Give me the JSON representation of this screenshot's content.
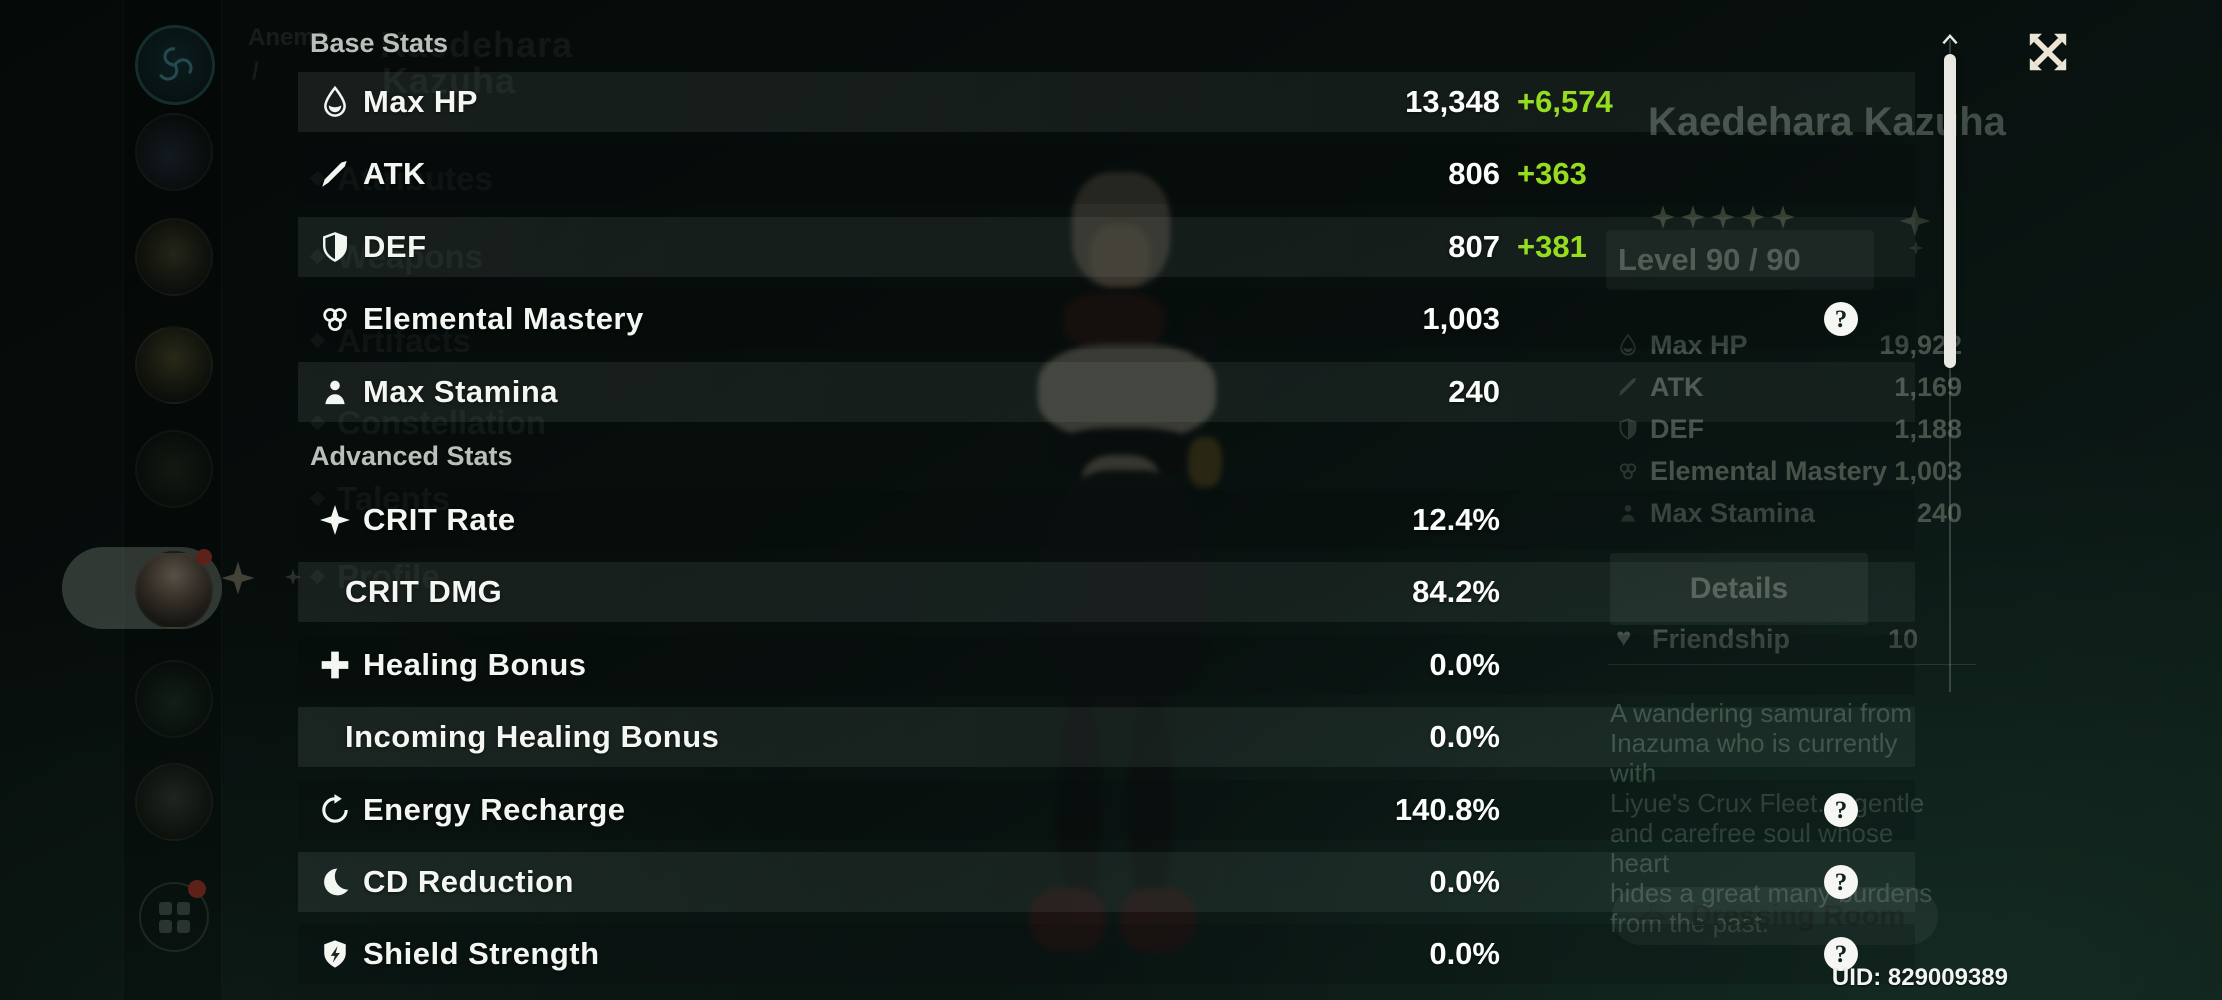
{
  "colors": {
    "accent_green": "#96dd1f",
    "cream": "#ece5d6",
    "scrollbar": "#e9e7e2",
    "panel_row_light": "rgba(206,232,221,0.08)"
  },
  "overlay": {
    "base_section_title": "Base Stats",
    "advanced_section_title": "Advanced Stats",
    "base_rows": [
      {
        "icon": "hp-drop-icon",
        "label": "Max HP",
        "value": "13,348",
        "bonus": "+6,574",
        "help": false
      },
      {
        "icon": "atk-sword-icon",
        "label": "ATK",
        "value": "806",
        "bonus": "+363",
        "help": false
      },
      {
        "icon": "def-shield-icon",
        "label": "DEF",
        "value": "807",
        "bonus": "+381",
        "help": false
      },
      {
        "icon": "elemental-mastery-icon",
        "label": "Elemental Mastery",
        "value": "1,003",
        "bonus": "",
        "help": true
      },
      {
        "icon": "stamina-icon",
        "label": "Max Stamina",
        "value": "240",
        "bonus": "",
        "help": false
      }
    ],
    "advanced_rows": [
      {
        "icon": "crit-rate-icon",
        "label": "CRIT Rate",
        "value": "12.4%",
        "bonus": "",
        "help": false
      },
      {
        "icon": "",
        "label": "CRIT DMG",
        "value": "84.2%",
        "bonus": "",
        "help": false
      },
      {
        "icon": "healing-bonus-icon",
        "label": "Healing Bonus",
        "value": "0.0%",
        "bonus": "",
        "help": false
      },
      {
        "icon": "",
        "label": "Incoming Healing Bonus",
        "value": "0.0%",
        "bonus": "",
        "help": false
      },
      {
        "icon": "energy-recharge-icon",
        "label": "Energy Recharge",
        "value": "140.8%",
        "bonus": "",
        "help": true
      },
      {
        "icon": "cd-reduction-icon",
        "label": "CD Reduction",
        "value": "0.0%",
        "bonus": "",
        "help": true
      },
      {
        "icon": "shield-strength-icon",
        "label": "Shield Strength",
        "value": "0.0%",
        "bonus": "",
        "help": true
      }
    ],
    "uid": "UID: 829009389"
  },
  "background": {
    "element_label": "Anemo",
    "element_label2": "/",
    "title_lines": [
      "Kaedehara",
      "Kazuha"
    ],
    "nav_items": [
      "Attributes",
      "Weapons",
      "Artifacts",
      "Constellation",
      "Talents",
      "Profile"
    ],
    "panel": {
      "name": "Kaedehara Kazuha",
      "rarity": 5,
      "level_label": "Level 90 / 90",
      "stats": [
        {
          "label": "Max HP",
          "value": "19,922"
        },
        {
          "label": "ATK",
          "value": "1,169"
        },
        {
          "label": "DEF",
          "value": "1,188"
        },
        {
          "label": "Elemental Mastery",
          "value": "1,003"
        },
        {
          "label": "Max Stamina",
          "value": "240"
        }
      ],
      "details_label": "Details",
      "friendship_label": "Friendship",
      "friendship_value": "10",
      "description_lines": [
        "A wandering samurai from",
        "Inazuma who is currently with",
        "Liyue's Crux Fleet. A gentle",
        "and carefree soul whose heart",
        "hides a great many burdens",
        "from the past."
      ],
      "dressing_room_label": "Dressing Room"
    }
  }
}
